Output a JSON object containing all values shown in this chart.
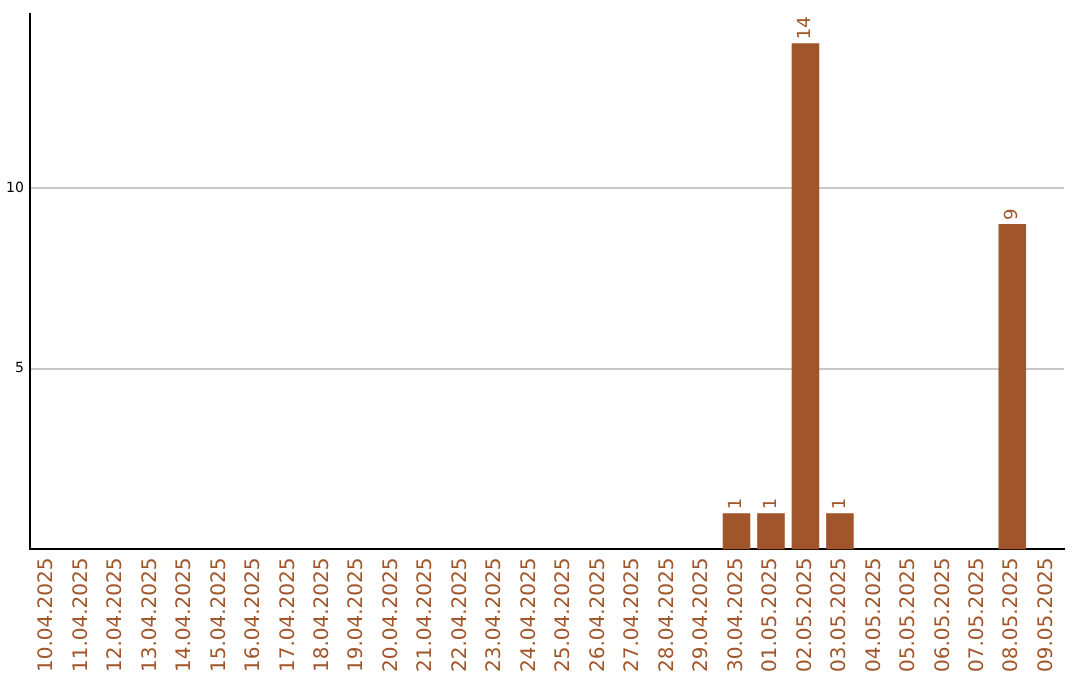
{
  "chart_data": {
    "type": "bar",
    "categories": [
      "10.04.2025",
      "11.04.2025",
      "12.04.2025",
      "13.04.2025",
      "14.04.2025",
      "15.04.2025",
      "16.04.2025",
      "17.04.2025",
      "18.04.2025",
      "19.04.2025",
      "20.04.2025",
      "21.04.2025",
      "22.04.2025",
      "23.04.2025",
      "24.04.2025",
      "25.04.2025",
      "26.04.2025",
      "27.04.2025",
      "28.04.2025",
      "29.04.2025",
      "30.04.2025",
      "01.05.2025",
      "02.05.2025",
      "03.05.2025",
      "04.05.2025",
      "05.05.2025",
      "06.05.2025",
      "07.05.2025",
      "08.05.2025",
      "09.05.2025"
    ],
    "values": [
      0,
      0,
      0,
      0,
      0,
      0,
      0,
      0,
      0,
      0,
      0,
      0,
      0,
      0,
      0,
      0,
      0,
      0,
      0,
      0,
      1,
      1,
      14,
      1,
      0,
      0,
      0,
      0,
      9,
      0
    ],
    "value_labels": [
      null,
      null,
      null,
      null,
      null,
      null,
      null,
      null,
      null,
      null,
      null,
      null,
      null,
      null,
      null,
      null,
      null,
      null,
      null,
      null,
      "1",
      "1",
      "14",
      "1",
      null,
      null,
      null,
      null,
      "9",
      null
    ],
    "color": "#a0562a",
    "ylim": [
      0,
      14.8
    ],
    "yticks": [
      5,
      10
    ],
    "grid": "y"
  }
}
